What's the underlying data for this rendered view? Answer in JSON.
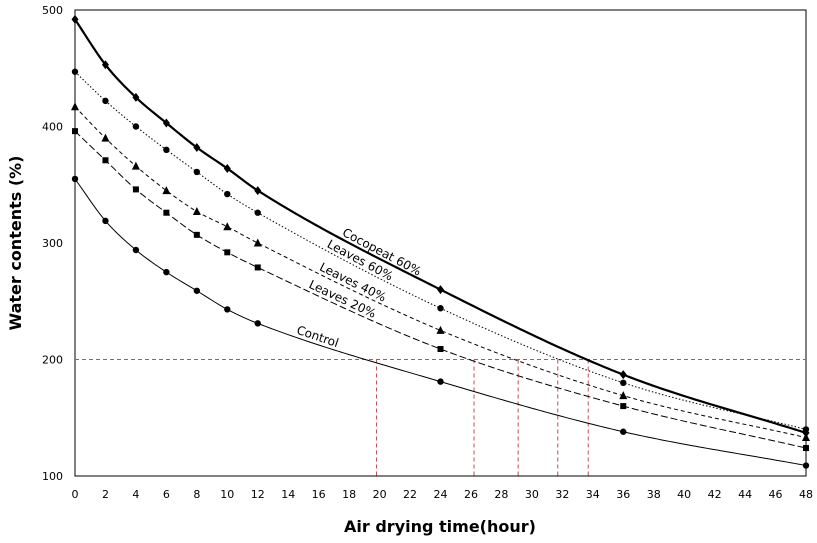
{
  "chart_data": {
    "type": "line",
    "title": "",
    "xlabel": "Air drying time(hour)",
    "ylabel": "Water contents (%)",
    "xlim": [
      0,
      48
    ],
    "ylim": [
      100,
      500
    ],
    "xticks": [
      "0",
      "2",
      "4",
      "6",
      "8",
      "10",
      "12",
      "14",
      "16",
      "18",
      "20",
      "22",
      "24",
      "26",
      "28",
      "30",
      "32",
      "34",
      "36",
      "38",
      "40",
      "42",
      "44",
      "46",
      "48"
    ],
    "yticks": [
      "100",
      "200",
      "300",
      "400",
      "500"
    ],
    "grid": false,
    "legend": "none",
    "series": [
      {
        "name": "Cocopeat 60%",
        "marker": "diamond",
        "line": "solid-thick",
        "color": "#000000",
        "x": [
          0,
          2,
          4,
          6,
          8,
          10,
          12,
          24,
          36,
          48
        ],
        "y": [
          492,
          453,
          425,
          403,
          382,
          364,
          345,
          260,
          187,
          137
        ],
        "label_at_x": 17.5
      },
      {
        "name": "Leaves 60%",
        "marker": "circle",
        "line": "dotted",
        "color": "#000000",
        "x": [
          0,
          2,
          4,
          6,
          8,
          10,
          12,
          24,
          36,
          48
        ],
        "y": [
          447,
          422,
          400,
          380,
          361,
          342,
          326,
          244,
          180,
          140
        ],
        "label_at_x": 16.5
      },
      {
        "name": "Leaves 40%",
        "marker": "triangle",
        "line": "short-dash",
        "color": "#000000",
        "x": [
          0,
          2,
          4,
          6,
          8,
          10,
          12,
          24,
          36,
          48
        ],
        "y": [
          417,
          390,
          366,
          345,
          327,
          314,
          300,
          225,
          169,
          133
        ],
        "label_at_x": 16
      },
      {
        "name": "Leaves 20%",
        "marker": "square",
        "line": "long-dash",
        "color": "#000000",
        "x": [
          0,
          2,
          4,
          6,
          8,
          10,
          12,
          24,
          36,
          48
        ],
        "y": [
          396,
          371,
          346,
          326,
          307,
          292,
          279,
          209,
          160,
          124
        ],
        "label_at_x": 15.3
      },
      {
        "name": "Control",
        "marker": "circle",
        "line": "solid-thin",
        "color": "#000000",
        "x": [
          0,
          2,
          4,
          6,
          8,
          10,
          12,
          24,
          36,
          48
        ],
        "y": [
          355,
          319,
          294,
          275,
          259,
          243,
          231,
          181,
          138,
          109
        ],
        "label_at_x": 14.5
      }
    ],
    "reference_lines": {
      "color": "#c0504d",
      "style": "dashed",
      "horizontal_y": 200,
      "vertical_x": [
        19.8,
        26.2,
        29.1,
        31.7,
        33.7
      ]
    }
  }
}
